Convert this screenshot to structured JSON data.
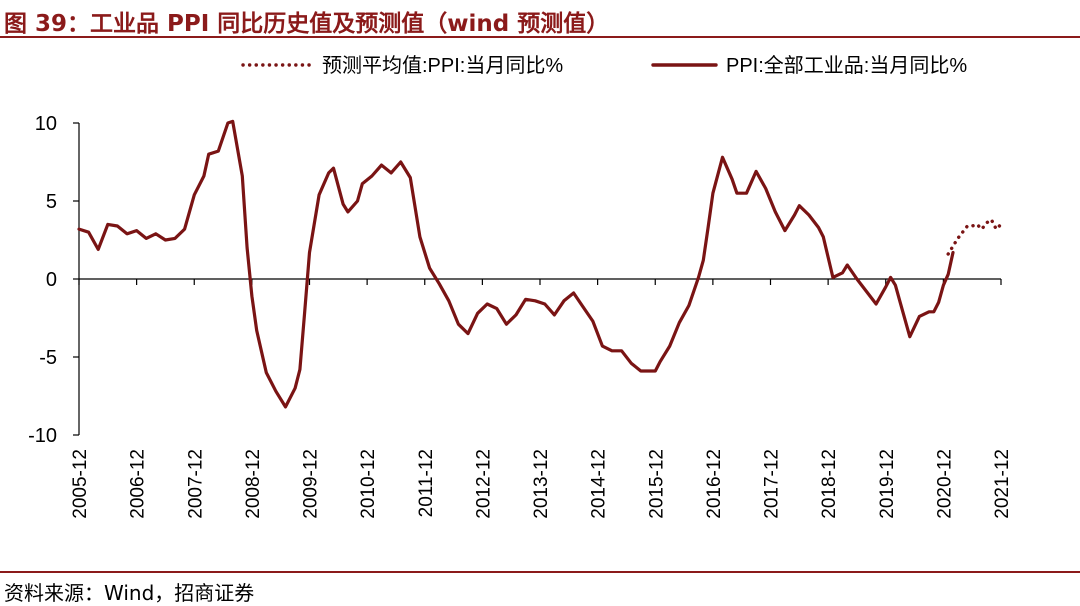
{
  "header": {
    "title": "图 39：工业品 PPI 同比历史值及预测值（wind 预测值）"
  },
  "footer": {
    "source": "资料来源：Wind，招商证券"
  },
  "colors": {
    "accent": "#8b1a1a",
    "series": "#7a1414",
    "axis": "#000000",
    "background": "#ffffff"
  },
  "chart_data": {
    "type": "line",
    "title": "",
    "xlabel": "",
    "ylabel": "",
    "ylim": [
      -10,
      10
    ],
    "yticks": [
      10,
      5,
      0,
      -5,
      -10
    ],
    "xlim": [
      "2005-12",
      "2021-12"
    ],
    "x_tick_labels": [
      "2005-12",
      "2006-12",
      "2007-12",
      "2008-12",
      "2009-12",
      "2010-12",
      "2011-12",
      "2012-12",
      "2013-12",
      "2014-12",
      "2015-12",
      "2016-12",
      "2017-12",
      "2018-12",
      "2019-12",
      "2020-12",
      "2021-12"
    ],
    "grid": false,
    "legend_position": "top",
    "series": [
      {
        "name": "预测平均值:PPI:当月同比%",
        "style": "dotted",
        "points": [
          [
            "2021-01",
            1.6
          ],
          [
            "2021-02",
            2.1
          ],
          [
            "2021-03",
            2.6
          ],
          [
            "2021-04",
            3.0
          ],
          [
            "2021-05",
            3.4
          ],
          [
            "2021-06",
            3.4
          ],
          [
            "2021-07",
            3.5
          ],
          [
            "2021-08",
            3.2
          ],
          [
            "2021-09",
            3.6
          ],
          [
            "2021-10",
            3.8
          ],
          [
            "2021-11",
            3.2
          ],
          [
            "2021-12",
            3.5
          ]
        ]
      },
      {
        "name": "PPI:全部工业品:当月同比%",
        "style": "solid",
        "points": [
          [
            "2005-12",
            3.2
          ],
          [
            "2006-02",
            3.0
          ],
          [
            "2006-04",
            1.9
          ],
          [
            "2006-06",
            3.5
          ],
          [
            "2006-08",
            3.4
          ],
          [
            "2006-10",
            2.9
          ],
          [
            "2006-12",
            3.1
          ],
          [
            "2007-02",
            2.6
          ],
          [
            "2007-04",
            2.9
          ],
          [
            "2007-06",
            2.5
          ],
          [
            "2007-08",
            2.6
          ],
          [
            "2007-10",
            3.2
          ],
          [
            "2007-12",
            5.4
          ],
          [
            "2008-02",
            6.6
          ],
          [
            "2008-03",
            8.0
          ],
          [
            "2008-05",
            8.2
          ],
          [
            "2008-07",
            10.0
          ],
          [
            "2008-08",
            10.1
          ],
          [
            "2008-10",
            6.6
          ],
          [
            "2008-11",
            2.0
          ],
          [
            "2008-12",
            -1.1
          ],
          [
            "2009-01",
            -3.3
          ],
          [
            "2009-03",
            -6.0
          ],
          [
            "2009-05",
            -7.2
          ],
          [
            "2009-07",
            -8.2
          ],
          [
            "2009-09",
            -7.0
          ],
          [
            "2009-10",
            -5.8
          ],
          [
            "2009-11",
            -2.1
          ],
          [
            "2009-12",
            1.7
          ],
          [
            "2010-02",
            5.4
          ],
          [
            "2010-04",
            6.8
          ],
          [
            "2010-05",
            7.1
          ],
          [
            "2010-07",
            4.8
          ],
          [
            "2010-08",
            4.3
          ],
          [
            "2010-10",
            5.0
          ],
          [
            "2010-11",
            6.1
          ],
          [
            "2011-01",
            6.6
          ],
          [
            "2011-03",
            7.3
          ],
          [
            "2011-05",
            6.8
          ],
          [
            "2011-07",
            7.5
          ],
          [
            "2011-09",
            6.5
          ],
          [
            "2011-11",
            2.7
          ],
          [
            "2012-01",
            0.7
          ],
          [
            "2012-03",
            -0.3
          ],
          [
            "2012-05",
            -1.4
          ],
          [
            "2012-07",
            -2.9
          ],
          [
            "2012-09",
            -3.5
          ],
          [
            "2012-11",
            -2.2
          ],
          [
            "2013-01",
            -1.6
          ],
          [
            "2013-03",
            -1.9
          ],
          [
            "2013-05",
            -2.9
          ],
          [
            "2013-07",
            -2.3
          ],
          [
            "2013-09",
            -1.3
          ],
          [
            "2013-11",
            -1.4
          ],
          [
            "2014-01",
            -1.6
          ],
          [
            "2014-03",
            -2.3
          ],
          [
            "2014-05",
            -1.4
          ],
          [
            "2014-07",
            -0.9
          ],
          [
            "2014-09",
            -1.8
          ],
          [
            "2014-11",
            -2.7
          ],
          [
            "2015-01",
            -4.3
          ],
          [
            "2015-03",
            -4.6
          ],
          [
            "2015-05",
            -4.6
          ],
          [
            "2015-07",
            -5.4
          ],
          [
            "2015-09",
            -5.9
          ],
          [
            "2015-11",
            -5.9
          ],
          [
            "2015-12",
            -5.9
          ],
          [
            "2016-01",
            -5.3
          ],
          [
            "2016-03",
            -4.3
          ],
          [
            "2016-05",
            -2.8
          ],
          [
            "2016-07",
            -1.7
          ],
          [
            "2016-09",
            0.1
          ],
          [
            "2016-10",
            1.2
          ],
          [
            "2016-11",
            3.3
          ],
          [
            "2016-12",
            5.5
          ],
          [
            "2017-02",
            7.8
          ],
          [
            "2017-04",
            6.4
          ],
          [
            "2017-05",
            5.5
          ],
          [
            "2017-07",
            5.5
          ],
          [
            "2017-09",
            6.9
          ],
          [
            "2017-11",
            5.8
          ],
          [
            "2018-01",
            4.3
          ],
          [
            "2018-03",
            3.1
          ],
          [
            "2018-05",
            4.1
          ],
          [
            "2018-06",
            4.7
          ],
          [
            "2018-08",
            4.1
          ],
          [
            "2018-10",
            3.3
          ],
          [
            "2018-11",
            2.7
          ],
          [
            "2019-01",
            0.1
          ],
          [
            "2019-03",
            0.4
          ],
          [
            "2019-04",
            0.9
          ],
          [
            "2019-06",
            0.0
          ],
          [
            "2019-08",
            -0.8
          ],
          [
            "2019-10",
            -1.6
          ],
          [
            "2019-12",
            -0.5
          ],
          [
            "2020-01",
            0.1
          ],
          [
            "2020-02",
            -0.4
          ],
          [
            "2020-03",
            -1.5
          ],
          [
            "2020-05",
            -3.7
          ],
          [
            "2020-07",
            -2.4
          ],
          [
            "2020-09",
            -2.1
          ],
          [
            "2020-10",
            -2.1
          ],
          [
            "2020-11",
            -1.5
          ],
          [
            "2020-12",
            -0.4
          ],
          [
            "2021-01",
            0.3
          ],
          [
            "2021-02",
            1.7
          ]
        ]
      }
    ]
  }
}
